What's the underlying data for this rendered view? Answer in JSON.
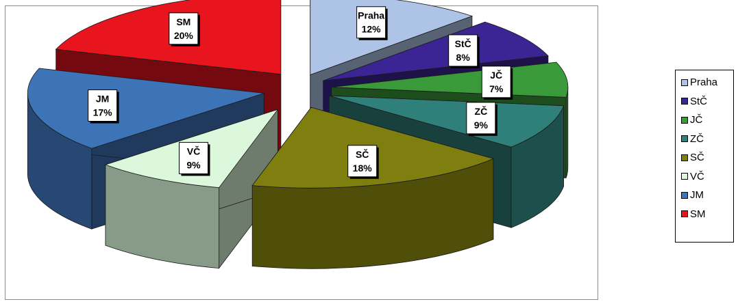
{
  "chart_data": {
    "type": "pie",
    "variant": "3d-exploded",
    "slices": [
      {
        "label": "Praha",
        "value": 12,
        "display": "12%",
        "color": "#aec4e6"
      },
      {
        "label": "StČ",
        "value": 8,
        "display": "8%",
        "color": "#3b2494"
      },
      {
        "label": "JČ",
        "value": 7,
        "display": "7%",
        "color": "#3a9a3a"
      },
      {
        "label": "ZČ",
        "value": 9,
        "display": "9%",
        "color": "#2f807a"
      },
      {
        "label": "SČ",
        "value": 18,
        "display": "18%",
        "color": "#7f7f10"
      },
      {
        "label": "VČ",
        "value": 9,
        "display": "9%",
        "color": "#dcf8dc"
      },
      {
        "label": "JM",
        "value": 17,
        "display": "17%",
        "color": "#3d74b8"
      },
      {
        "label": "SM",
        "value": 20,
        "display": "20%",
        "color": "#e8141e"
      }
    ],
    "legend_position": "right"
  }
}
